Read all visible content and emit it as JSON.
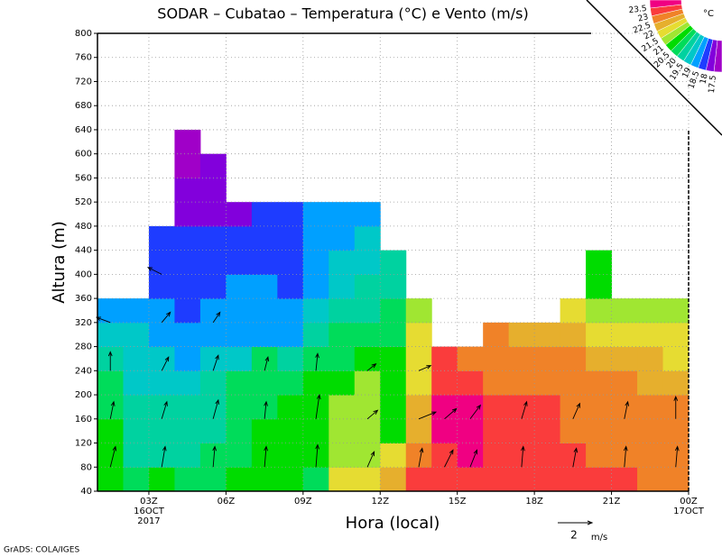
{
  "chart_data": {
    "type": "contour",
    "title": "SODAR – Cubatao – Temperatura (°C) e Vento (m/s)",
    "x_label": "Hora (local)",
    "y_label": "Altura (m)",
    "footer": "GrADS: COLA/IGES",
    "xlim": [
      1,
      24
    ],
    "ylim": [
      40,
      800
    ],
    "xticks": [
      {
        "value": 3,
        "label": "03Z"
      },
      {
        "value": 6,
        "label": "06Z"
      },
      {
        "value": 9,
        "label": "09Z"
      },
      {
        "value": 12,
        "label": "12Z"
      },
      {
        "value": 15,
        "label": "15Z"
      },
      {
        "value": 18,
        "label": "18Z"
      },
      {
        "value": 21,
        "label": "21Z"
      },
      {
        "value": 24,
        "label": "00Z"
      }
    ],
    "x_date_labels": [
      {
        "value": 3,
        "lines": [
          "16OCT",
          "2017"
        ]
      },
      {
        "value": 24,
        "lines": [
          "17OCT"
        ]
      }
    ],
    "yticks": [
      40,
      80,
      120,
      160,
      200,
      240,
      280,
      320,
      360,
      400,
      440,
      480,
      520,
      560,
      600,
      640,
      680,
      720,
      760,
      800
    ],
    "grid": true,
    "levels": [
      17.5,
      18,
      18.5,
      19,
      19.5,
      20,
      20.5,
      21,
      21.5,
      22,
      22.5,
      23,
      23.5
    ],
    "colors": [
      "#a000c8",
      "#8200dc",
      "#1e3cff",
      "#00a0ff",
      "#00c8c8",
      "#00d2a0",
      "#00dc5a",
      "#00dc00",
      "#a0e632",
      "#e6dc32",
      "#e6af2d",
      "#f08228",
      "#fa3c3c",
      "#f00082"
    ],
    "legend_unit": "°C",
    "x": [
      1.5,
      2.5,
      3.5,
      4.5,
      5.5,
      6.5,
      7.5,
      8.5,
      9.5,
      10.5,
      11.5,
      12.5,
      13.5,
      14.5,
      15.5,
      16.5,
      17.5,
      18.5,
      19.5,
      20.5,
      21.5,
      22.5,
      23.5
    ],
    "y": [
      60,
      100,
      140,
      180,
      220,
      260,
      300,
      340,
      380,
      420,
      460,
      500,
      540,
      580,
      620
    ],
    "z": [
      [
        20.7,
        20.7,
        20.7,
        20.2,
        20.2,
        19.7,
        19.2,
        18.7,
        null,
        null,
        null,
        null,
        null,
        null,
        null
      ],
      [
        20.2,
        19.7,
        19.7,
        19.7,
        19.2,
        19.2,
        19.2,
        18.7,
        null,
        null,
        null,
        null,
        null,
        null,
        null
      ],
      [
        20.7,
        19.7,
        19.7,
        19.7,
        19.2,
        19.2,
        18.7,
        18.7,
        18.2,
        18.2,
        18.2,
        null,
        null,
        null,
        null
      ],
      [
        20.2,
        19.7,
        19.7,
        19.7,
        19.2,
        18.7,
        18.7,
        18.2,
        18.2,
        18.2,
        18.2,
        17.7,
        17.7,
        17.2,
        17.2
      ],
      [
        20.2,
        20.2,
        19.7,
        19.7,
        19.7,
        19.2,
        18.7,
        18.7,
        18.2,
        18.2,
        18.2,
        17.7,
        17.7,
        17.7,
        null
      ],
      [
        20.7,
        20.2,
        20.2,
        20.2,
        20.2,
        19.2,
        18.7,
        18.7,
        18.7,
        18.2,
        18.2,
        17.7,
        null,
        null,
        null
      ],
      [
        20.7,
        20.7,
        20.7,
        20.2,
        20.2,
        20.2,
        18.7,
        18.7,
        18.7,
        18.2,
        18.2,
        18.2,
        null,
        null,
        null
      ],
      [
        20.7,
        20.7,
        20.7,
        20.7,
        20.2,
        19.7,
        18.7,
        18.7,
        18.2,
        18.2,
        18.2,
        18.2,
        null,
        null,
        null
      ],
      [
        20.2,
        20.7,
        20.7,
        20.7,
        20.7,
        20.2,
        19.7,
        19.2,
        18.7,
        18.7,
        18.7,
        18.7,
        null,
        null,
        null
      ],
      [
        21.7,
        21.2,
        21.2,
        21.2,
        20.7,
        20.2,
        20.2,
        19.7,
        19.2,
        19.2,
        18.7,
        18.7,
        null,
        null,
        null
      ],
      [
        21.7,
        21.2,
        21.2,
        21.2,
        21.2,
        20.7,
        20.2,
        19.7,
        19.7,
        19.2,
        19.2,
        18.7,
        null,
        null,
        null
      ],
      [
        22.2,
        21.7,
        20.7,
        20.7,
        20.7,
        20.7,
        20.2,
        20.2,
        19.7,
        19.7,
        null,
        null,
        null,
        null,
        null
      ],
      [
        23.2,
        22.7,
        22.2,
        22.2,
        21.7,
        21.7,
        21.7,
        21.2,
        null,
        null,
        null,
        null,
        null,
        null,
        null
      ],
      [
        23.2,
        23.2,
        23.7,
        23.7,
        23.2,
        23.2,
        null,
        null,
        null,
        null,
        null,
        null,
        null,
        null,
        null
      ],
      [
        23.2,
        23.7,
        23.7,
        23.7,
        23.2,
        22.7,
        null,
        null,
        null,
        null,
        null,
        null,
        null,
        null,
        null
      ],
      [
        23.2,
        23.2,
        23.2,
        23.2,
        22.7,
        22.7,
        22.7,
        null,
        null,
        null,
        null,
        null,
        null,
        null,
        null
      ],
      [
        23.2,
        23.2,
        23.2,
        23.2,
        22.7,
        22.7,
        22.2,
        null,
        null,
        null,
        null,
        null,
        null,
        null,
        null
      ],
      [
        23.2,
        23.2,
        23.2,
        23.2,
        22.7,
        22.7,
        22.2,
        null,
        null,
        null,
        null,
        null,
        null,
        null,
        null
      ],
      [
        23.2,
        23.2,
        22.7,
        22.7,
        22.7,
        22.7,
        22.2,
        21.7,
        null,
        null,
        null,
        null,
        null,
        null,
        null
      ],
      [
        23.2,
        22.7,
        22.7,
        22.7,
        22.7,
        22.2,
        21.7,
        21.2,
        20.7,
        20.7,
        null,
        null,
        null,
        null,
        null
      ],
      [
        23.2,
        22.7,
        22.7,
        22.7,
        22.7,
        22.2,
        21.7,
        21.2,
        null,
        null,
        null,
        null,
        null,
        null,
        null
      ],
      [
        22.7,
        22.7,
        22.7,
        22.7,
        22.2,
        22.2,
        21.7,
        21.2,
        null,
        null,
        null,
        null,
        null,
        null,
        null
      ],
      [
        22.7,
        22.7,
        22.7,
        22.7,
        22.2,
        21.7,
        21.7,
        21.2,
        null,
        null,
        null,
        null,
        null,
        null,
        null
      ]
    ],
    "wind": {
      "x": [
        1.5,
        1.5,
        1.5,
        1.5,
        3.5,
        3.5,
        3.5,
        3.5,
        3.5,
        5.5,
        5.5,
        5.5,
        5.5,
        7.5,
        7.5,
        7.5,
        9.5,
        9.5,
        9.5,
        11.5,
        11.5,
        11.5,
        13.5,
        13.5,
        13.5,
        14.5,
        14.5,
        15.5,
        15.5,
        17.5,
        17.5,
        19.5,
        19.5,
        21.5,
        21.5,
        23.5,
        23.5
      ],
      "y": [
        80,
        160,
        240,
        320,
        80,
        160,
        240,
        320,
        400,
        80,
        160,
        240,
        320,
        80,
        160,
        240,
        80,
        160,
        240,
        80,
        160,
        240,
        80,
        160,
        240,
        80,
        160,
        80,
        160,
        80,
        160,
        80,
        160,
        80,
        160,
        80,
        160
      ],
      "u": [
        0.3,
        0.2,
        0,
        -0.8,
        0.2,
        0.3,
        0.4,
        0.5,
        -0.8,
        0.1,
        0.3,
        0.3,
        0.4,
        0.1,
        0.1,
        0.2,
        0.1,
        0.2,
        0.1,
        0.4,
        0.6,
        0.5,
        0.2,
        1.0,
        0.7,
        0.5,
        0.7,
        0.4,
        0.6,
        0.1,
        0.3,
        0.2,
        0.4,
        0.1,
        0.2,
        0.1,
        0
      ],
      "v": [
        1.2,
        1.0,
        1.1,
        0.3,
        1.2,
        1.0,
        0.8,
        0.6,
        0.4,
        1.2,
        1.1,
        0.9,
        0.6,
        1.2,
        1.0,
        0.8,
        1.3,
        1.4,
        1.0,
        0.9,
        0.5,
        0.4,
        1.1,
        0.4,
        0.3,
        1.0,
        0.6,
        1.0,
        0.8,
        1.2,
        1.0,
        1.1,
        0.9,
        1.2,
        1.0,
        1.2,
        1.3
      ]
    },
    "wind_ref": {
      "value": 2,
      "unit": "m/s"
    }
  }
}
